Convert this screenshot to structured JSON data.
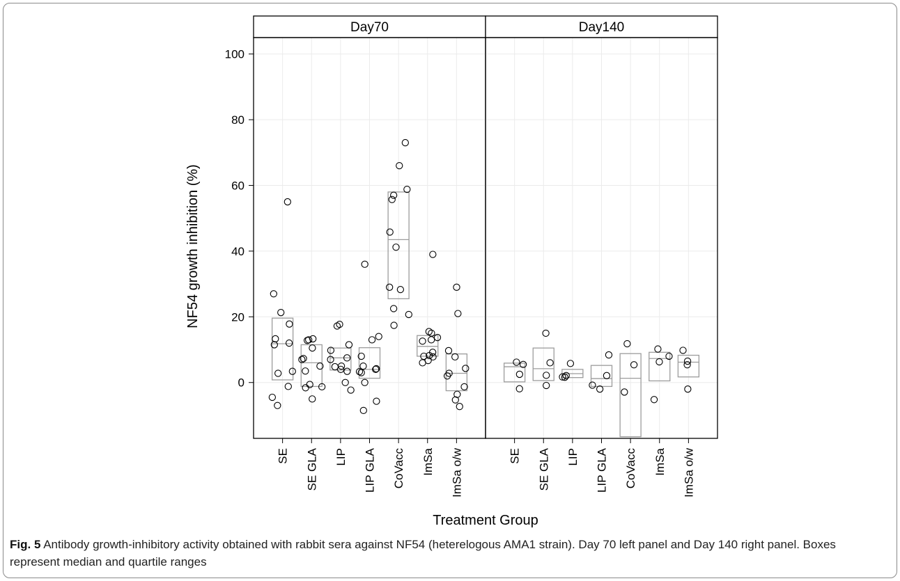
{
  "chart_data": {
    "type": "scatter",
    "subtype": "faceted jittered dot plot with median/quartile boxes",
    "ylabel": "NF54 growth inhibition (%)",
    "xlabel": "Treatment Group",
    "ylim": [
      -17,
      105
    ],
    "yticks": [
      0,
      20,
      40,
      60,
      80,
      100
    ],
    "grid": true,
    "categories": [
      "SE",
      "SE GLA",
      "LIP",
      "LIP GLA",
      "CoVacc",
      "ImSa",
      "ImSa o/w"
    ],
    "panels": [
      {
        "name": "Day70",
        "groups": [
          {
            "category": "SE",
            "box": {
              "q1": 0.8,
              "median": 11.8,
              "q3": 19.6
            },
            "points": [
              55,
              27,
              21.3,
              17.8,
              13.3,
              12,
              11.5,
              3.4,
              2.8,
              -1.2,
              -4.5,
              -7
            ]
          },
          {
            "category": "SE GLA",
            "box": {
              "q1": -1.2,
              "median": 6,
              "q3": 11.5
            },
            "points": [
              13.3,
              13,
              12.8,
              10.5,
              7.3,
              7,
              5,
              3.5,
              -0.6,
              -1.3,
              -1.6,
              -5
            ]
          },
          {
            "category": "LIP",
            "box": {
              "q1": 3.8,
              "median": 7.5,
              "q3": 10.5
            },
            "points": [
              17.7,
              17.2,
              11.5,
              9.8,
              7.5,
              7,
              5,
              4.8,
              4,
              3.4,
              0,
              -2.3
            ]
          },
          {
            "category": "LIP GLA",
            "box": {
              "q1": 1.3,
              "median": 4,
              "q3": 10.6
            },
            "points": [
              36,
              14,
              13,
              8,
              5,
              4.2,
              4,
              3.3,
              3,
              0,
              -5.7,
              -8.5
            ]
          },
          {
            "category": "CoVacc",
            "box": {
              "q1": 25.5,
              "median": 43.5,
              "q3": 58
            },
            "points": [
              73,
              66,
              58.8,
              57,
              55.7,
              45.8,
              41.2,
              29,
              28.3,
              22.5,
              20.7,
              17.4
            ]
          },
          {
            "category": "ImSa",
            "box": {
              "q1": 8,
              "median": 11,
              "q3": 14.3
            },
            "points": [
              39,
              15.5,
              15,
              13.7,
              13,
              12.6,
              9.2,
              8.2,
              8,
              7.8,
              6.7,
              6
            ]
          },
          {
            "category": "ImSa o/w",
            "box": {
              "q1": -2.5,
              "median": 2.8,
              "q3": 8.7
            },
            "points": [
              29,
              21,
              9.7,
              7.8,
              4.3,
              2.8,
              2,
              -1.3,
              -3.6,
              -5.3,
              -7.3
            ]
          }
        ]
      },
      {
        "name": "Day140",
        "groups": [
          {
            "category": "SE",
            "box": {
              "q1": 0.2,
              "median": 4.8,
              "q3": 5.9
            },
            "points": [
              6.2,
              5.5,
              2.5,
              -1.9
            ]
          },
          {
            "category": "SE GLA",
            "box": {
              "q1": 0.6,
              "median": 4.2,
              "q3": 10.5
            },
            "points": [
              15,
              6,
              2.2,
              -0.9
            ]
          },
          {
            "category": "LIP",
            "box": {
              "q1": 1.5,
              "median": 2.7,
              "q3": 4
            },
            "points": [
              5.8,
              2.1,
              1.6,
              1.7
            ]
          },
          {
            "category": "LIP GLA",
            "box": {
              "q1": -1.2,
              "median": 1.2,
              "q3": 5.2
            },
            "points": [
              8.4,
              2.1,
              -0.8,
              -2
            ]
          },
          {
            "category": "CoVacc",
            "box": {
              "q1": -16.5,
              "median": 1.3,
              "q3": 8.8
            },
            "points": [
              11.8,
              5.4,
              -2.9
            ]
          },
          {
            "category": "ImSa",
            "box": {
              "q1": 0.5,
              "median": 7.3,
              "q3": 9.2
            },
            "points": [
              10.2,
              8,
              6.3,
              -5.2
            ]
          },
          {
            "category": "ImSa o/w",
            "box": {
              "q1": 1.7,
              "median": 6.2,
              "q3": 8.3
            },
            "points": [
              9.8,
              6.5,
              5.4,
              -2
            ]
          }
        ]
      }
    ]
  },
  "caption": {
    "label": "Fig. 5",
    "text": " Antibody growth-inhibitory activity obtained with rabbit sera against NF54 (heterelogous AMA1 strain). Day 70 left panel and Day 140 right panel. Boxes represent median and quartile ranges"
  },
  "colors": {
    "grid": "#ebebeb",
    "box": "#9c9c9c",
    "point": "#000000",
    "frame": "#000000"
  }
}
